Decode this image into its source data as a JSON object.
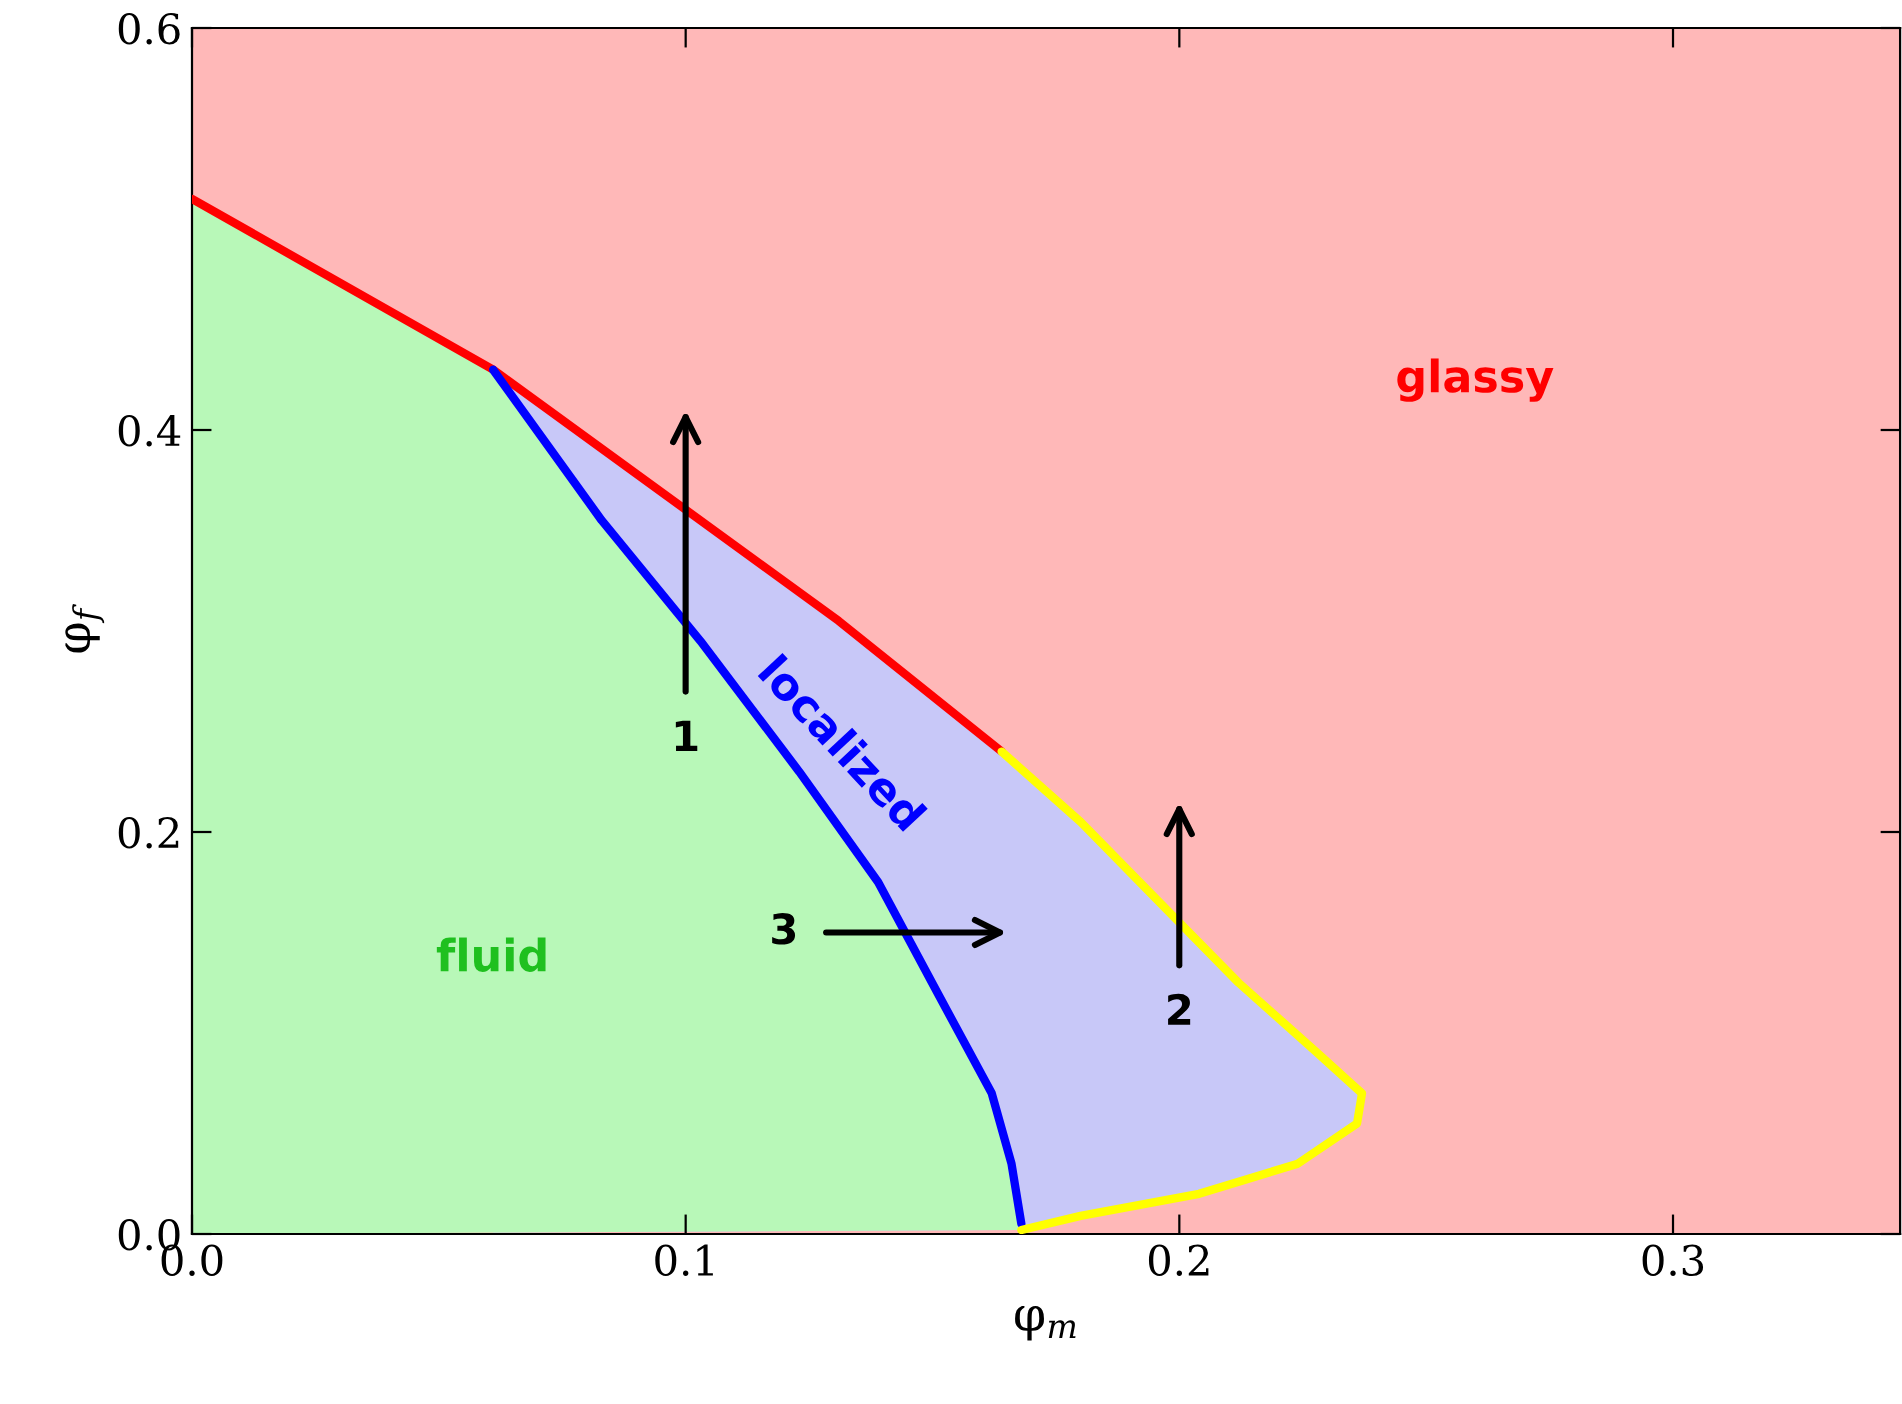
{
  "chart_data": {
    "type": "line",
    "xlabel": "φ$_{m}$",
    "ylabel": "φ$_{f}$",
    "xlim": [
      0,
      0.346
    ],
    "ylim": [
      0,
      0.6
    ],
    "xticks": [
      {
        "value": 0,
        "label": "0.0"
      },
      {
        "value": 0.1,
        "label": "0.1"
      },
      {
        "value": 0.2,
        "label": "0.2"
      },
      {
        "value": 0.3,
        "label": "0.3"
      }
    ],
    "yticks": [
      {
        "value": 0,
        "label": "0.0"
      },
      {
        "value": 0.2,
        "label": "0.2"
      },
      {
        "value": 0.4,
        "label": "0.4"
      },
      {
        "value": 0.6,
        "label": "0.6"
      }
    ],
    "grid": false,
    "legend": false,
    "marker": "none",
    "line_style": "solid",
    "series": [
      {
        "type": "area",
        "color": "#c8c8f8",
        "x": [
          0.061,
          0.131,
          0.164,
          0.18,
          0.196,
          0.212,
          0.228,
          0.237
        ],
        "values": [
          0.43,
          0.305,
          0.24,
          0.205,
          0.165,
          0.125,
          0.09,
          0.07
        ]
      },
      {
        "type": "area",
        "color": "#b8f8b8",
        "x": [
          0,
          0.061,
          0.083,
          0.103,
          0.123,
          0.139,
          0.151,
          0.162,
          0.166,
          0.168
        ],
        "values": [
          0.515,
          0.43,
          0.355,
          0.295,
          0.23,
          0.175,
          0.12,
          0.07,
          0.035,
          0.005
        ]
      },
      {
        "color": "#ff0000",
        "x": [
          0,
          0.061,
          0.131,
          0.164
        ],
        "values": [
          0.515,
          0.43,
          0.305,
          0.24
        ]
      },
      {
        "color": "#0000ff",
        "x": [
          0.061,
          0.083,
          0.103,
          0.123,
          0.139,
          0.151,
          0.162,
          0.166,
          0.168
        ],
        "values": [
          0.43,
          0.355,
          0.295,
          0.23,
          0.175,
          0.12,
          0.07,
          0.035,
          0.005
        ]
      },
      {
        "color": "#ffff00",
        "x": [
          0.164,
          0.18,
          0.196,
          0.212,
          0.228,
          0.237,
          0.236,
          0.224,
          0.204,
          0.18,
          0.168
        ],
        "values": [
          0.24,
          0.205,
          0.165,
          0.125,
          0.09,
          0.07,
          0.055,
          0.035,
          0.02,
          0.009,
          0.002
        ]
      }
    ],
    "annotations": [
      "glassy",
      "localized",
      "fluid",
      "1",
      "2",
      "3"
    ]
  }
}
